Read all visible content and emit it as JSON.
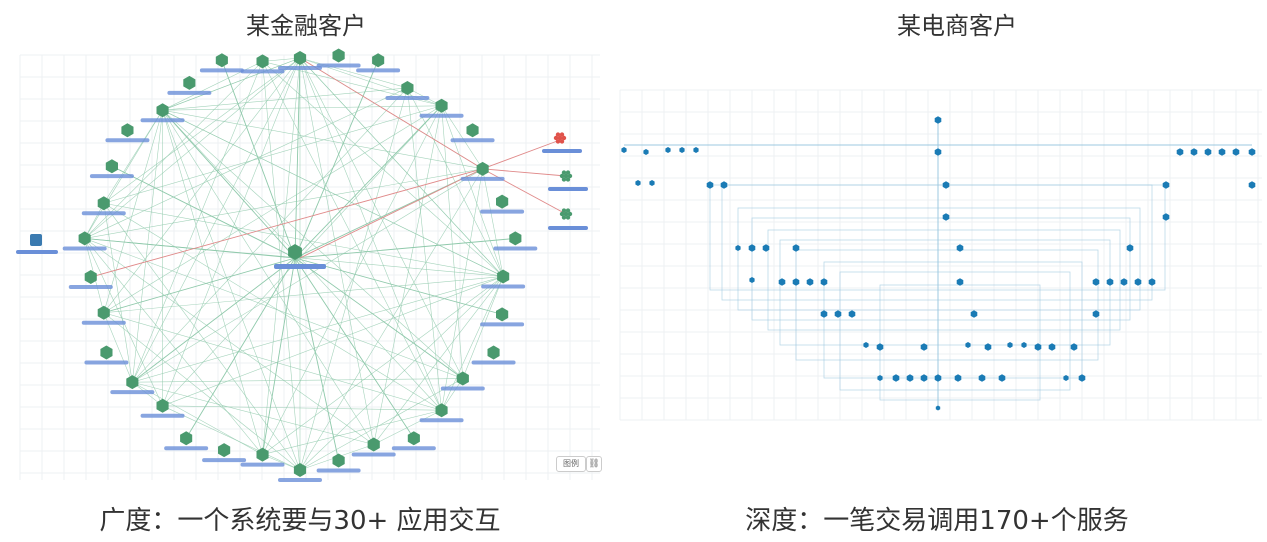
{
  "left_panel": {
    "title": "某金融客户",
    "caption": "广度：一个系统要与30+ 应用交互",
    "legend_label": "图例",
    "link_icon": "link-icon"
  },
  "right_panel": {
    "title": "某电商客户",
    "caption": "深度：一笔交易调用170+个服务"
  },
  "colors": {
    "node_green": "#4a9a6e",
    "edge_green": "#8fc9ab",
    "edge_red": "#e08a8a",
    "node_red": "#e0524a",
    "label_bar": "#6a8fd8",
    "node_blue": "#1a7bb5",
    "edge_blue": "#9cc9e0",
    "grid": "#eef1f3"
  }
}
